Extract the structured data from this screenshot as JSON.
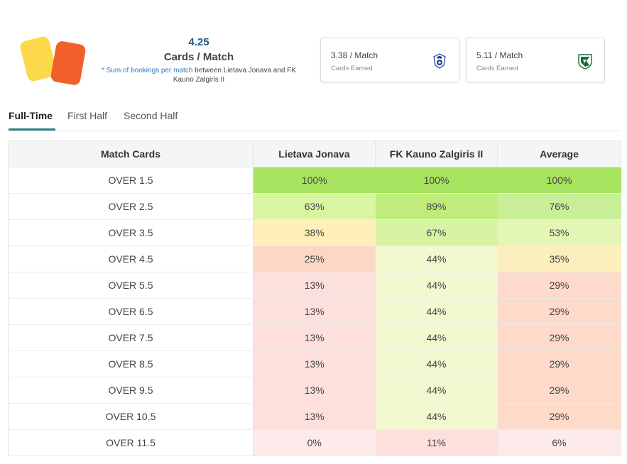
{
  "summary": {
    "value": "4.25",
    "label": "Cards / Match",
    "note_link": "* Sum of bookings per match",
    "note_rest": " between Lietava Jonava and FK Kauno Zalgiris II"
  },
  "home_box": {
    "value": "3.38 / Match",
    "label": "Cards Earned",
    "logo_icon": "lietava-jonava-crest"
  },
  "away_box": {
    "value": "5.11 / Match",
    "label": "Cards Earned",
    "logo_icon": "fk-kauno-zalgiris-crest"
  },
  "tabs": [
    "Full-Time",
    "First Half",
    "Second Half"
  ],
  "active_tab": "Full-Time",
  "table": {
    "headers": [
      "Match Cards",
      "Lietava Jonava",
      "FK Kauno Zalgiris II",
      "Average"
    ],
    "rows": [
      {
        "line": "OVER 1.5",
        "home": "100%",
        "away": "100%",
        "avg": "100%"
      },
      {
        "line": "OVER 2.5",
        "home": "63%",
        "away": "89%",
        "avg": "76%"
      },
      {
        "line": "OVER 3.5",
        "home": "38%",
        "away": "67%",
        "avg": "53%"
      },
      {
        "line": "OVER 4.5",
        "home": "25%",
        "away": "44%",
        "avg": "35%"
      },
      {
        "line": "OVER 5.5",
        "home": "13%",
        "away": "44%",
        "avg": "29%"
      },
      {
        "line": "OVER 6.5",
        "home": "13%",
        "away": "44%",
        "avg": "29%"
      },
      {
        "line": "OVER 7.5",
        "home": "13%",
        "away": "44%",
        "avg": "29%"
      },
      {
        "line": "OVER 8.5",
        "home": "13%",
        "away": "44%",
        "avg": "29%"
      },
      {
        "line": "OVER 9.5",
        "home": "13%",
        "away": "44%",
        "avg": "29%"
      },
      {
        "line": "OVER 10.5",
        "home": "13%",
        "away": "44%",
        "avg": "29%"
      },
      {
        "line": "OVER 11.5",
        "home": "0%",
        "away": "11%",
        "avg": "6%"
      }
    ]
  },
  "colors": {
    "pct_100": "#a6e35e",
    "pct_89": "#bfec7a",
    "pct_76": "#c8ee98",
    "pct_67": "#d6f4a4",
    "pct_63": "#d8f5a2",
    "pct_53": "#e3f6b6",
    "pct_44": "#f3f8d0",
    "pct_38": "#fef0b8",
    "pct_35": "#fdefbd",
    "pct_29": "#fddac9",
    "pct_25": "#fdd7c6",
    "pct_13": "#fde0dc",
    "pct_11": "#fddfdc",
    "pct_6": "#fdeaea",
    "pct_0": "#fdeaea",
    "accent": "#2f7f88",
    "stat_value": "#1c5c86"
  }
}
